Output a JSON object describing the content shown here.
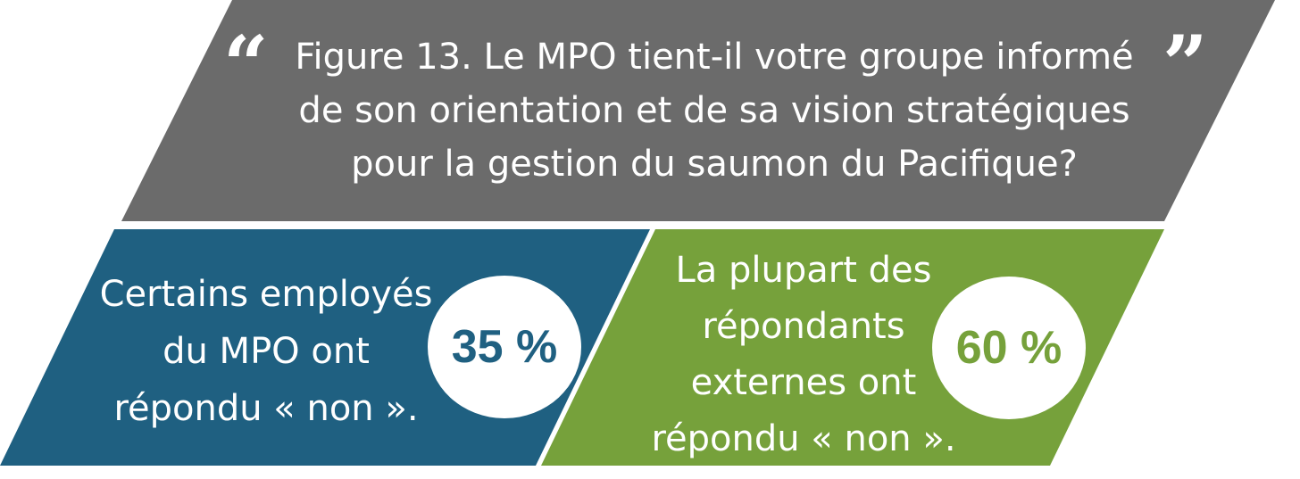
{
  "title": {
    "open_quote": "“",
    "text": "Figure 13. Le MPO tient-il votre groupe informé de son orientation et de sa vision stratégiques pour la gestion du saumon du Pacifique?",
    "close_quote": "”"
  },
  "panels": {
    "left": {
      "text": "Certains employés du MPO ont répondu « non ».",
      "percent": "35 %",
      "value": 35,
      "color": "#1f6081"
    },
    "right": {
      "text": "La plupart des répondants externes ont répondu « non ».",
      "percent": "60 %",
      "value": 60,
      "color": "#76a13b"
    }
  },
  "colors": {
    "title_bg": "#6b6b6b",
    "text": "#ffffff"
  }
}
